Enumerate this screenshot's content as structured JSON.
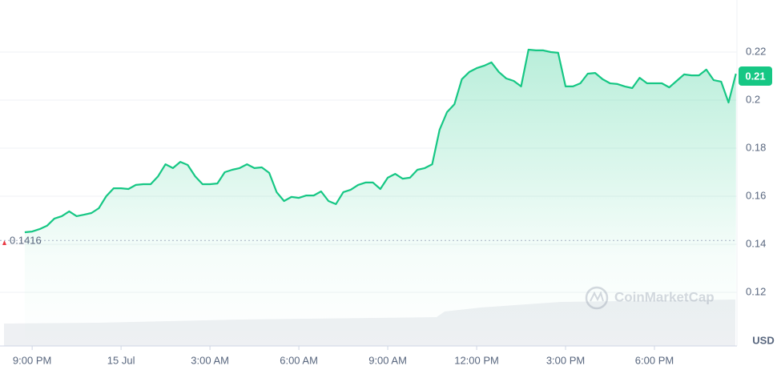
{
  "chart_data": {
    "type": "line",
    "x": [
      -0.25,
      0,
      0.25,
      0.5,
      0.75,
      1,
      1.25,
      1.5,
      1.75,
      2,
      2.25,
      2.5,
      2.75,
      3,
      3.25,
      3.5,
      3.75,
      4,
      4.25,
      4.5,
      4.75,
      5,
      5.25,
      5.5,
      5.75,
      6,
      6.25,
      6.5,
      6.75,
      7,
      7.25,
      7.5,
      7.75,
      8,
      8.25,
      8.5,
      8.75,
      9,
      9.25,
      9.5,
      9.75,
      10,
      10.25,
      10.5,
      10.75,
      11,
      11.25,
      11.5,
      11.75,
      12,
      12.25,
      12.5,
      12.75,
      13,
      13.25,
      13.5,
      13.75,
      14,
      14.25,
      14.5,
      14.75,
      15,
      15.25,
      15.5,
      15.75,
      16,
      16.25,
      16.5,
      16.75,
      17,
      17.25,
      17.5,
      17.75,
      18,
      18.25,
      18.5,
      18.75,
      19,
      19.25,
      19.5,
      19.75,
      20,
      20.25,
      20.5,
      20.75,
      21,
      21.25,
      21.5,
      21.75,
      22,
      22.25,
      22.5,
      22.75,
      23,
      23.25,
      23.5,
      23.75
    ],
    "series": [
      {
        "name": "Price",
        "color": "#16c784",
        "values": [
          0.145,
          0.1453,
          0.1463,
          0.1477,
          0.1507,
          0.1517,
          0.1537,
          0.1517,
          0.1523,
          0.153,
          0.155,
          0.16,
          0.1633,
          0.1633,
          0.163,
          0.1647,
          0.165,
          0.165,
          0.1683,
          0.1733,
          0.1717,
          0.1743,
          0.173,
          0.1683,
          0.165,
          0.165,
          0.1653,
          0.17,
          0.171,
          0.1717,
          0.1733,
          0.1717,
          0.172,
          0.1697,
          0.1617,
          0.158,
          0.1597,
          0.1593,
          0.1603,
          0.1603,
          0.162,
          0.158,
          0.1567,
          0.1617,
          0.1627,
          0.1647,
          0.1657,
          0.1657,
          0.163,
          0.1677,
          0.1693,
          0.1673,
          0.1677,
          0.171,
          0.1717,
          0.1733,
          0.1877,
          0.195,
          0.1983,
          0.2087,
          0.2117,
          0.2133,
          0.2143,
          0.2157,
          0.2117,
          0.209,
          0.208,
          0.2057,
          0.221,
          0.2207,
          0.2207,
          0.22,
          0.2197,
          0.2057,
          0.2057,
          0.207,
          0.211,
          0.2113,
          0.2087,
          0.207,
          0.2067,
          0.2057,
          0.205,
          0.2093,
          0.207,
          0.207,
          0.207,
          0.2053,
          0.208,
          0.2107,
          0.2103,
          0.2103,
          0.2127,
          0.2083,
          0.2077,
          0.199,
          0.211
        ]
      }
    ],
    "xlim": [
      -0.95,
      23.8
    ],
    "xticks": [
      {
        "value": 0,
        "label": "9:00 PM"
      },
      {
        "value": 3,
        "label": "15 Jul"
      },
      {
        "value": 6,
        "label": "3:00 AM"
      },
      {
        "value": 9,
        "label": "6:00 AM"
      },
      {
        "value": 12,
        "label": "9:00 AM"
      },
      {
        "value": 15,
        "label": "12:00 PM"
      },
      {
        "value": 18,
        "label": "3:00 PM"
      },
      {
        "value": 21,
        "label": "6:00 PM"
      }
    ],
    "ylim": [
      0.098,
      0.24
    ],
    "yticks": [
      0.12,
      0.14,
      0.16,
      0.18,
      0.2,
      0.22
    ],
    "grid": true,
    "reference_value": 0.1416,
    "current_price": 0.21,
    "currency": "USD",
    "watermark": "CoinMarketCap"
  }
}
